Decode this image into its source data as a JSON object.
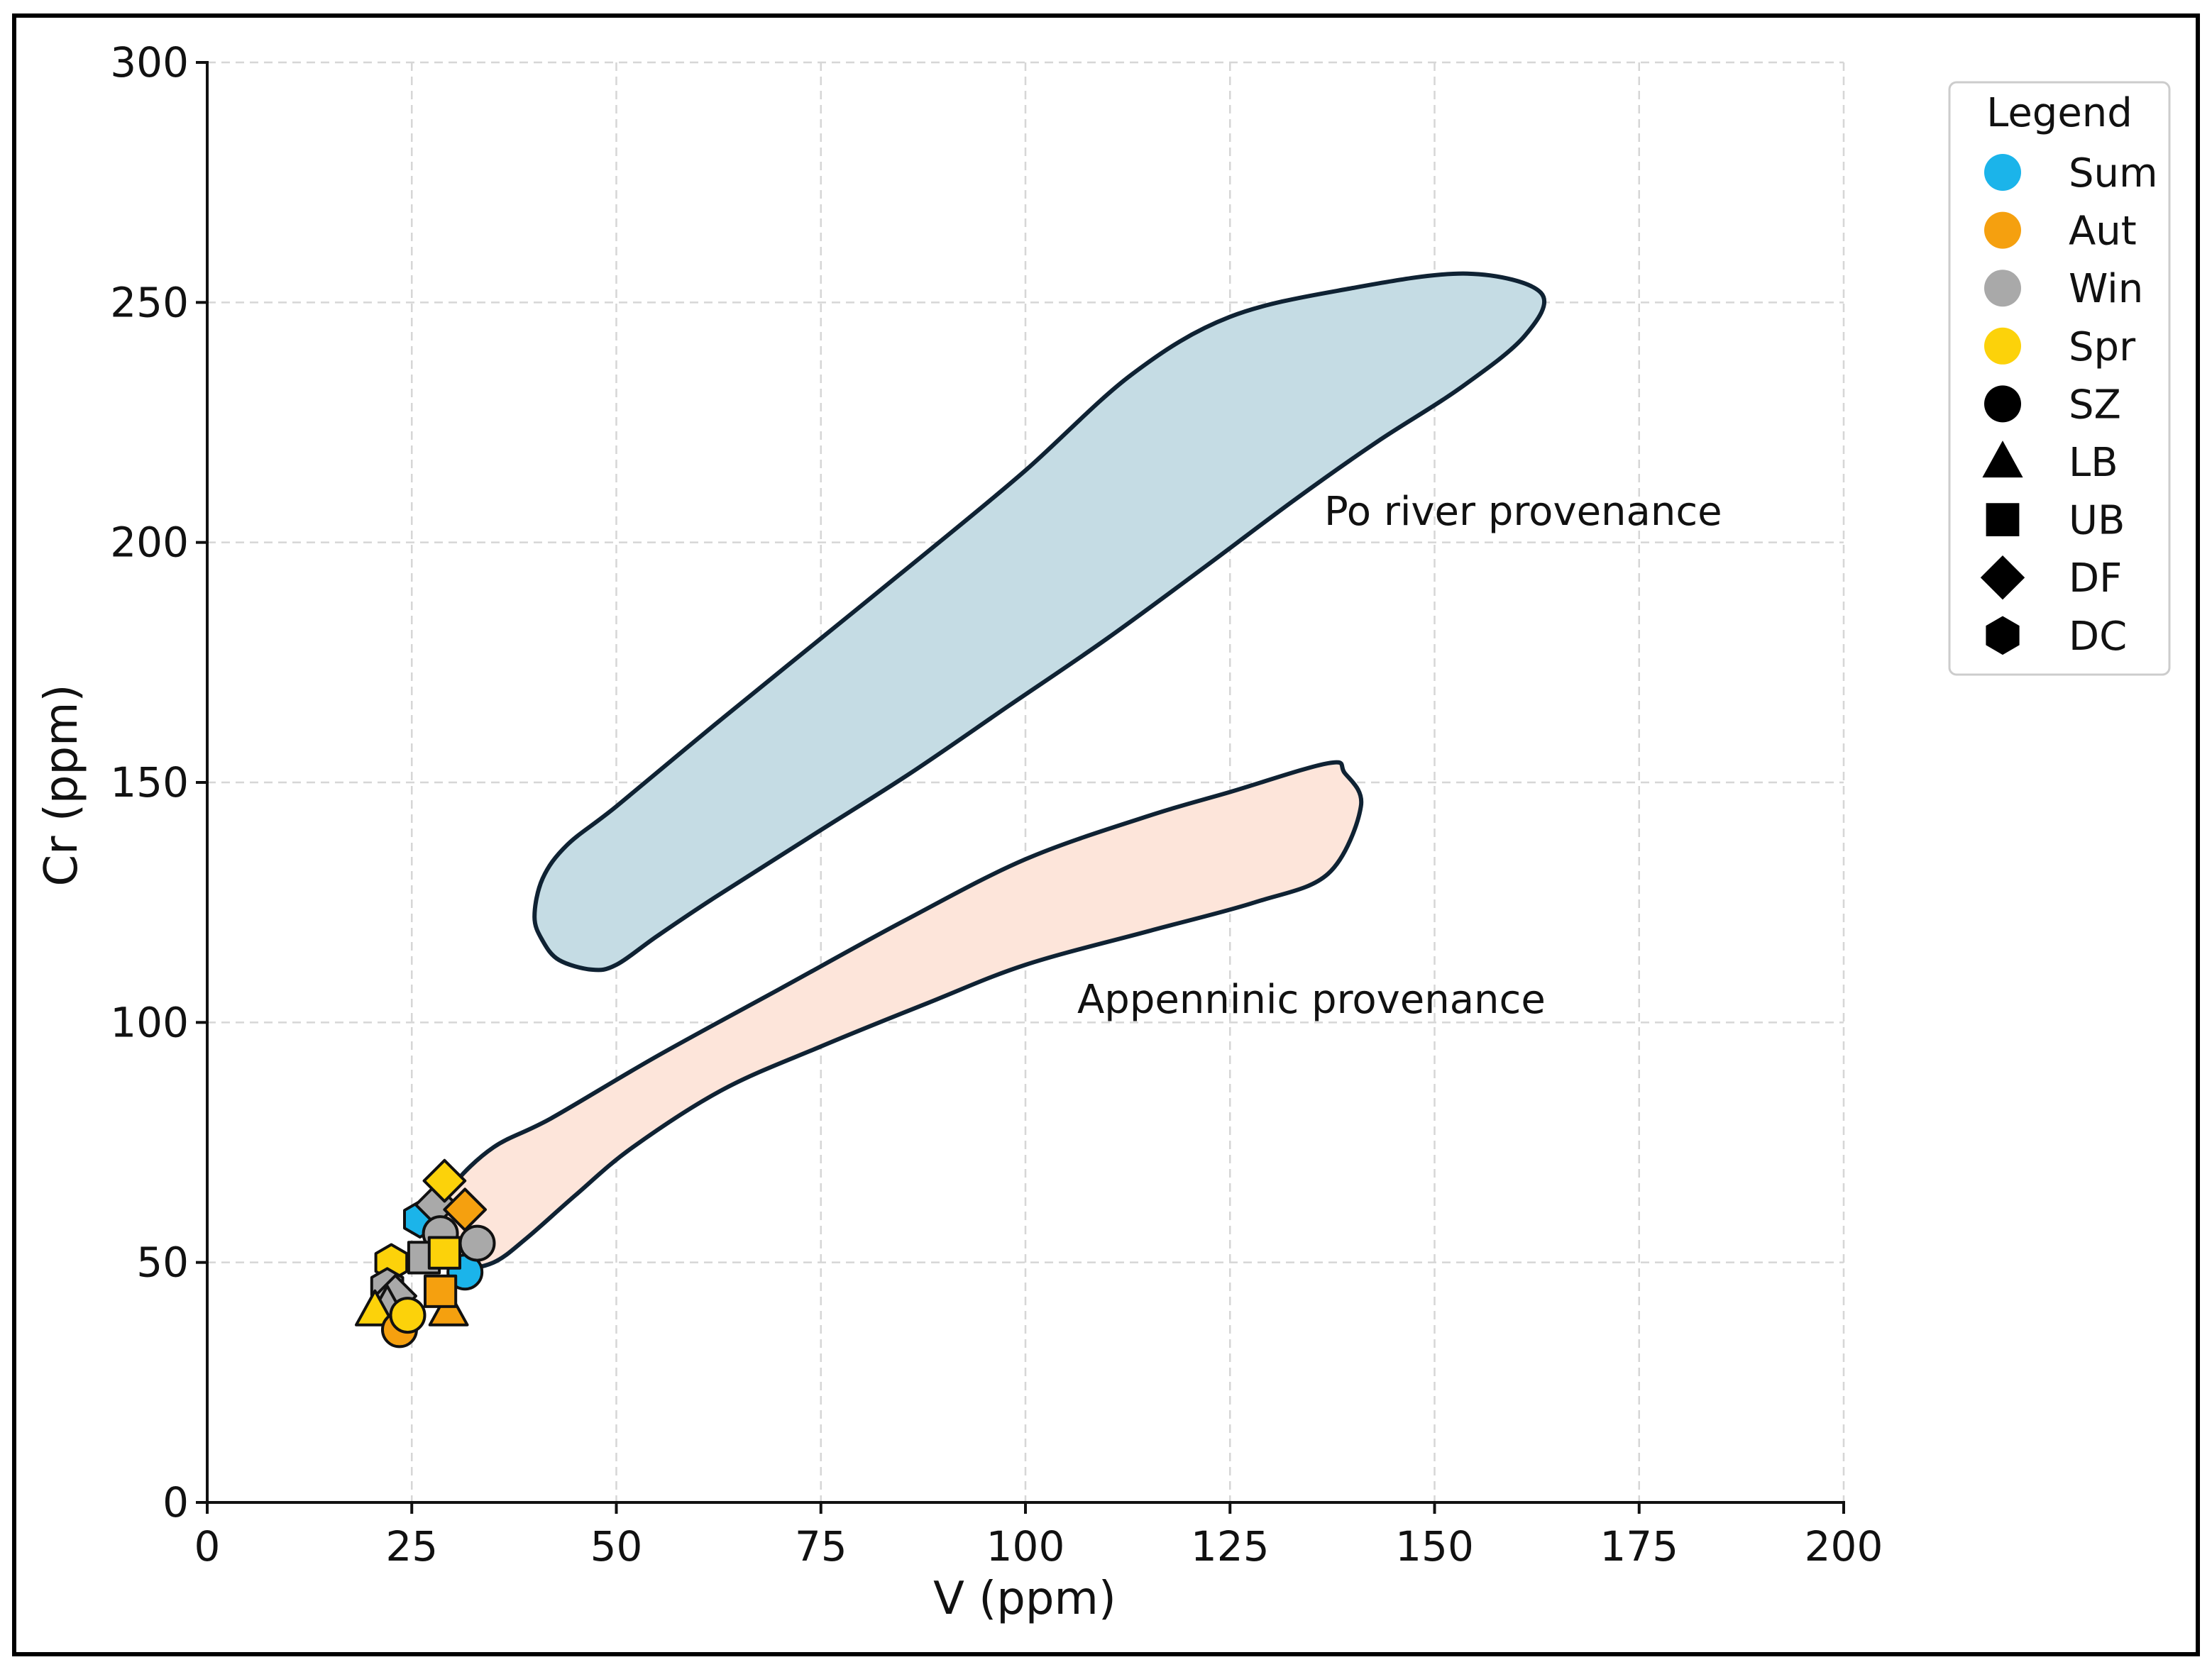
{
  "chart_data": {
    "type": "scatter",
    "xlabel": "V (ppm)",
    "ylabel": "Cr (ppm)",
    "xlim": [
      0,
      200
    ],
    "ylim": [
      0,
      300
    ],
    "xticks": [
      0,
      25,
      50,
      75,
      100,
      125,
      150,
      175,
      200
    ],
    "yticks": [
      0,
      50,
      100,
      150,
      200,
      250,
      300
    ],
    "grid": true,
    "legend": {
      "title": "Legend",
      "placement": "top-right",
      "seasons": [
        {
          "name": "Sum",
          "color": "#1bb4ea"
        },
        {
          "name": "Aut",
          "color": "#f5a00f"
        },
        {
          "name": "Win",
          "color": "#a9a9a9"
        },
        {
          "name": "Spr",
          "color": "#fcd20a"
        }
      ],
      "sites": [
        {
          "name": "SZ",
          "marker": "circle"
        },
        {
          "name": "LB",
          "marker": "triangle"
        },
        {
          "name": "UB",
          "marker": "square"
        },
        {
          "name": "DF",
          "marker": "diamond"
        },
        {
          "name": "DC",
          "marker": "hexagon"
        }
      ]
    },
    "regions": [
      {
        "name": "Po river provenance",
        "fill": "#c5dce4",
        "outline": [
          [
            40,
            122
          ],
          [
            41,
            130
          ],
          [
            44,
            137
          ],
          [
            50,
            145
          ],
          [
            62,
            162
          ],
          [
            75,
            180
          ],
          [
            88,
            198
          ],
          [
            100,
            215
          ],
          [
            113,
            235
          ],
          [
            125,
            247
          ],
          [
            140,
            253
          ],
          [
            154,
            256
          ],
          [
            163,
            252
          ],
          [
            161,
            243
          ],
          [
            153,
            232
          ],
          [
            143,
            221
          ],
          [
            133,
            209
          ],
          [
            122,
            195
          ],
          [
            110,
            180
          ],
          [
            98,
            166
          ],
          [
            86,
            152
          ],
          [
            74,
            139
          ],
          [
            62,
            126
          ],
          [
            55,
            118
          ],
          [
            50,
            112
          ],
          [
            47,
            111
          ],
          [
            43,
            113
          ],
          [
            41,
            117
          ]
        ]
      },
      {
        "name": "Appenninic provenance",
        "fill": "#fde5da",
        "outline": [
          [
            30,
            66
          ],
          [
            35,
            74
          ],
          [
            42,
            80
          ],
          [
            55,
            93
          ],
          [
            70,
            107
          ],
          [
            85,
            121
          ],
          [
            100,
            134
          ],
          [
            115,
            143
          ],
          [
            125,
            148
          ],
          [
            137,
            154
          ],
          [
            139,
            152
          ],
          [
            141,
            145
          ],
          [
            137,
            131
          ],
          [
            128,
            125
          ],
          [
            115,
            119
          ],
          [
            100,
            112
          ],
          [
            88,
            104
          ],
          [
            75,
            95
          ],
          [
            63,
            86
          ],
          [
            52,
            74
          ],
          [
            45,
            64
          ],
          [
            39,
            55
          ],
          [
            35,
            50
          ],
          [
            31,
            49
          ],
          [
            29,
            53
          ],
          [
            28,
            59
          ]
        ]
      }
    ],
    "points": [
      {
        "season": "Sum",
        "site": "DC",
        "x": 26,
        "y": 59
      },
      {
        "season": "Win",
        "site": "DF",
        "x": 28,
        "y": 62
      },
      {
        "season": "Aut",
        "site": "DF",
        "x": 31.5,
        "y": 61
      },
      {
        "season": "Win",
        "site": "SZ",
        "x": 28.5,
        "y": 56
      },
      {
        "season": "Spr",
        "site": "DF",
        "x": 29,
        "y": 67
      },
      {
        "season": "Sum",
        "site": "SZ",
        "x": 31.5,
        "y": 48
      },
      {
        "season": "Win",
        "site": "SZ",
        "x": 33,
        "y": 54
      },
      {
        "season": "Spr",
        "site": "DC",
        "x": 22.5,
        "y": 50
      },
      {
        "season": "Win",
        "site": "DC",
        "x": 22,
        "y": 45
      },
      {
        "season": "Win",
        "site": "DF",
        "x": 23,
        "y": 43
      },
      {
        "season": "Win",
        "site": "UB",
        "x": 26.5,
        "y": 51
      },
      {
        "season": "Spr",
        "site": "UB",
        "x": 29,
        "y": 52
      },
      {
        "season": "Aut",
        "site": "LB",
        "x": 29.5,
        "y": 40
      },
      {
        "season": "Aut",
        "site": "UB",
        "x": 28.5,
        "y": 44
      },
      {
        "season": "Win",
        "site": "LB",
        "x": 22,
        "y": 41
      },
      {
        "season": "Spr",
        "site": "LB",
        "x": 20.5,
        "y": 40
      },
      {
        "season": "Aut",
        "site": "SZ",
        "x": 23.5,
        "y": 36
      },
      {
        "season": "Spr",
        "site": "SZ",
        "x": 24.5,
        "y": 39
      }
    ]
  }
}
